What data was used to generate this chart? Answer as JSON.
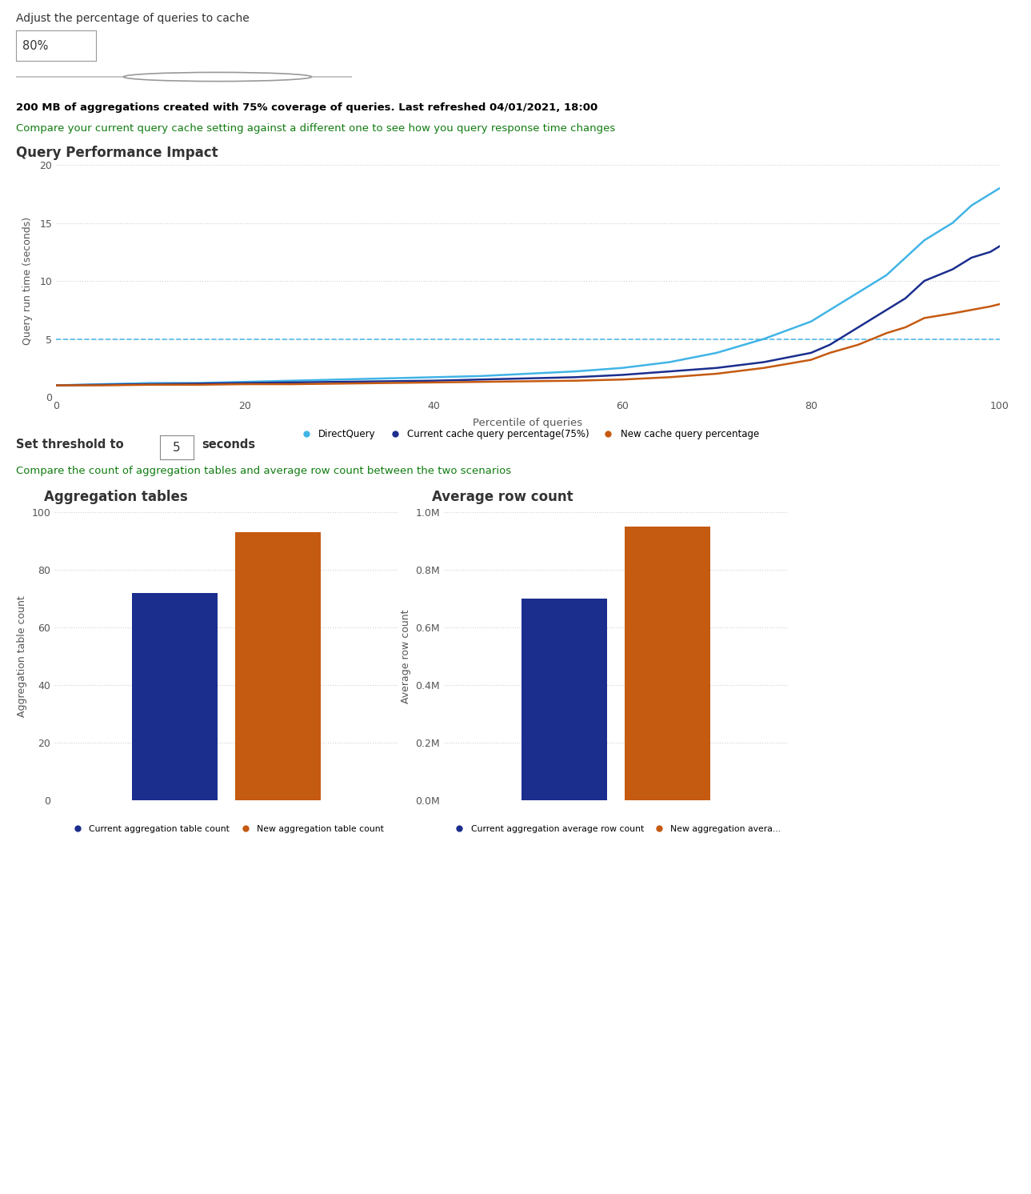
{
  "title_adjust": "Adjust the percentage of queries to cache",
  "slider_value": "80%",
  "bold_text": "200 MB of aggregations created with 75% coverage of queries. Last refreshed 04/01/2021, 18:00",
  "desc_text": "Compare your current query cache setting against a different one to see how you query response time changes",
  "line_chart_title": "Query Performance Impact",
  "line_xlabel": "Percentile of queries",
  "line_ylabel": "Query run time (seconds)",
  "line_ylim": [
    0,
    20
  ],
  "line_xlim": [
    0,
    100
  ],
  "line_yticks": [
    0,
    5,
    10,
    15,
    20
  ],
  "line_xticks": [
    0,
    20,
    40,
    60,
    80,
    100
  ],
  "threshold_line": 5,
  "direct_query_x": [
    0,
    5,
    10,
    15,
    20,
    25,
    30,
    35,
    40,
    45,
    50,
    55,
    60,
    65,
    70,
    75,
    80,
    82,
    85,
    88,
    90,
    92,
    95,
    97,
    99,
    100
  ],
  "direct_query_y": [
    1.0,
    1.1,
    1.2,
    1.2,
    1.3,
    1.4,
    1.5,
    1.6,
    1.7,
    1.8,
    2.0,
    2.2,
    2.5,
    3.0,
    3.8,
    5.0,
    6.5,
    7.5,
    9.0,
    10.5,
    12.0,
    13.5,
    15.0,
    16.5,
    17.5,
    18.0
  ],
  "current_cache_x": [
    0,
    5,
    10,
    15,
    20,
    25,
    30,
    35,
    40,
    45,
    50,
    55,
    60,
    65,
    70,
    75,
    80,
    82,
    85,
    88,
    90,
    92,
    95,
    97,
    99,
    100
  ],
  "current_cache_y": [
    1.0,
    1.05,
    1.1,
    1.15,
    1.2,
    1.25,
    1.3,
    1.35,
    1.4,
    1.5,
    1.6,
    1.7,
    1.9,
    2.2,
    2.5,
    3.0,
    3.8,
    4.5,
    6.0,
    7.5,
    8.5,
    10.0,
    11.0,
    12.0,
    12.5,
    13.0
  ],
  "new_cache_x": [
    0,
    5,
    10,
    15,
    20,
    25,
    30,
    35,
    40,
    45,
    50,
    55,
    60,
    65,
    70,
    75,
    80,
    82,
    85,
    88,
    90,
    92,
    95,
    97,
    99,
    100
  ],
  "new_cache_y": [
    1.0,
    1.0,
    1.05,
    1.05,
    1.1,
    1.1,
    1.15,
    1.2,
    1.25,
    1.3,
    1.35,
    1.4,
    1.5,
    1.7,
    2.0,
    2.5,
    3.2,
    3.8,
    4.5,
    5.5,
    6.0,
    6.8,
    7.2,
    7.5,
    7.8,
    8.0
  ],
  "direct_query_color": "#41B4E6",
  "current_cache_color": "#1B2E8E",
  "new_cache_color": "#C55A11",
  "threshold_color": "#41B4E6",
  "set_threshold_text": "Set threshold to",
  "threshold_value": "5",
  "threshold_unit": "seconds",
  "compare_text": "Compare the count of aggregation tables and average row count between the two scenarios",
  "bar1_title": "Aggregation tables",
  "bar1_ylabel": "Aggregation table count",
  "bar1_current": 72,
  "bar1_new": 93,
  "bar1_ylim": [
    0,
    100
  ],
  "bar1_yticks": [
    0,
    20,
    40,
    60,
    80,
    100
  ],
  "bar2_title": "Average row count",
  "bar2_ylabel": "Average row count",
  "bar2_current": 700000,
  "bar2_new": 950000,
  "bar2_ylim": [
    0,
    1000000
  ],
  "bar2_yticks": [
    0,
    200000,
    400000,
    600000,
    800000,
    1000000
  ],
  "bar_current_color": "#1B2E8E",
  "bar_new_color": "#C55A11",
  "bar1_legend": [
    "Current aggregation table count",
    "New aggregation table count"
  ],
  "bar2_legend": [
    "Current aggregation average row count",
    "New aggregation avera..."
  ],
  "legend_direct": "DirectQuery",
  "legend_current": "Current cache query percentage(75%)",
  "legend_new": "New cache query percentage",
  "bg_color": "#FFFFFF",
  "text_color": "#333333",
  "bold_text_color": "#000000",
  "desc_text_color": "#107C10",
  "compare_text_color": "#107C10",
  "grid_color": "#D0D0D0",
  "tick_color": "#555555",
  "slider_line_color": "#BBBBBB",
  "slider_circle_color": "#FFFFFF",
  "slider_circle_edge": "#999999",
  "box_edge_color": "#999999"
}
